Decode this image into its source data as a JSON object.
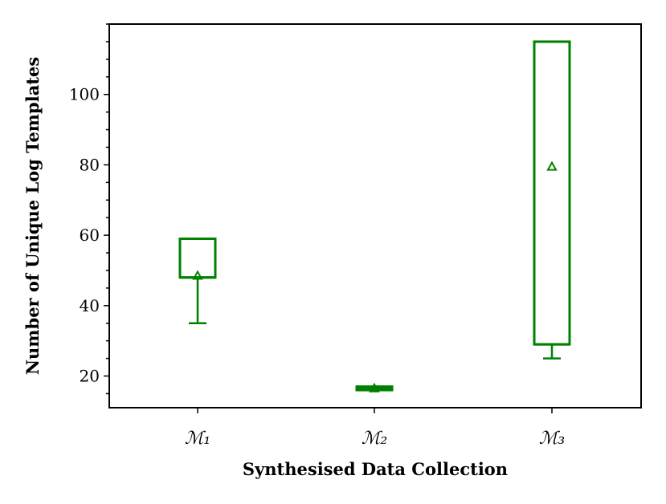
{
  "chart_data": {
    "type": "box",
    "title": "",
    "xlabel": "Synthesised Data Collection",
    "ylabel": "Number of Unique Log Templates",
    "categories": [
      "ℳ₁",
      "ℳ₂",
      "ℳ₃"
    ],
    "ylim": [
      11,
      120
    ],
    "yticks": [
      20,
      40,
      60,
      80,
      100
    ],
    "yminor_step": 5,
    "grid": false,
    "box_color": "#008000",
    "boxes": [
      {
        "whisker_low": 35,
        "q1": 48,
        "median": 48,
        "q3": 59,
        "whisker_high": 59,
        "mean": 48.5
      },
      {
        "whisker_low": 16,
        "q1": 16,
        "median": 16.5,
        "q3": 17,
        "whisker_high": 17,
        "mean": 16.5
      },
      {
        "whisker_low": 25,
        "q1": 29,
        "median": 29,
        "q3": 115,
        "whisker_high": 115,
        "mean": 79.5
      }
    ]
  }
}
